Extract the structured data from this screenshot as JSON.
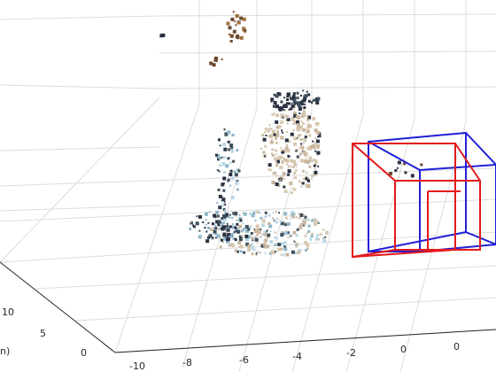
{
  "chart_data": {
    "type": "scatter3d",
    "title": "",
    "grid": true,
    "x_axis": {
      "ticks": [
        "-10",
        "-8",
        "-6",
        "-4",
        "-2",
        "0"
      ]
    },
    "y_axis": {
      "label_fragment": "n)",
      "ticks": [
        "10",
        "5",
        "0"
      ]
    },
    "series": [
      {
        "kind": "point-cloud",
        "colors": [
          "#2a3242",
          "#c9b79f",
          "#8fb6c9",
          "#6b4a32",
          "#a07040",
          "#d7c8b0",
          "#3d4f5c",
          "#b9d8e6"
        ],
        "points": [
          [
            -5.9,
            4.2,
            3.1
          ],
          [
            -5.6,
            4.0,
            3.6
          ],
          [
            -5.4,
            4.1,
            2.7
          ],
          [
            -5.8,
            3.7,
            2.3
          ],
          [
            -5.2,
            3.8,
            2.0
          ],
          [
            -6.2,
            3.4,
            1.6
          ],
          [
            -5.7,
            3.2,
            1.0
          ],
          [
            -6.5,
            3.0,
            0.6
          ],
          [
            -6.9,
            2.8,
            0.2
          ],
          [
            -5.3,
            3.0,
            0.1
          ],
          [
            -7.1,
            4.6,
            3.8
          ],
          [
            -8.4,
            6.0,
            6.8
          ],
          [
            -7.3,
            6.4,
            6.2
          ]
        ]
      },
      {
        "kind": "camera-frustum",
        "color": "#e31a1c"
      },
      {
        "kind": "camera-frustum",
        "color": "#1f1fd6"
      }
    ]
  }
}
